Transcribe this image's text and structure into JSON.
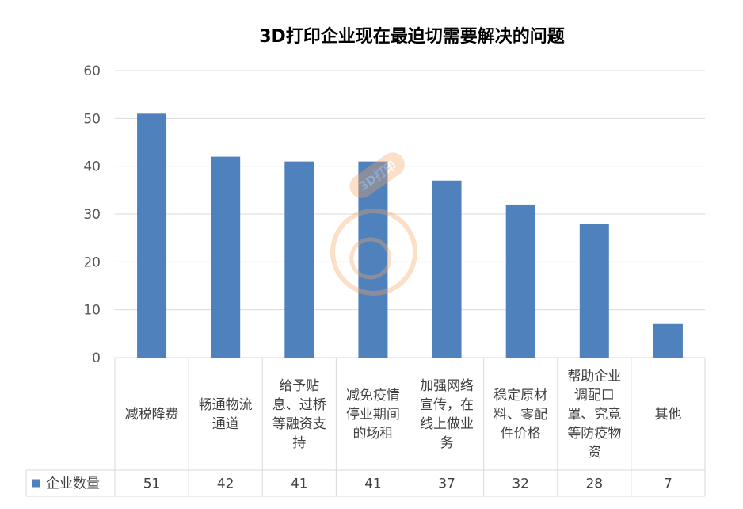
{
  "chart_data": {
    "type": "bar",
    "title": "3D打印企业现在最迫切需要解决的问题",
    "categories": [
      "减税降费",
      "畅通物流通道",
      "给予贴息、过桥等融资支持",
      "减免疫情停业期间的场租",
      "加强网络宣传，在线上做业务",
      "稳定原材料、零配件价格",
      "帮助企业调配口罩、究竟等防疫物资",
      "其他"
    ],
    "category_lines": [
      [
        "减税降费"
      ],
      [
        "畅通物流",
        "通道"
      ],
      [
        "给予贴",
        "息、过桥",
        "等融资支",
        "持"
      ],
      [
        "减免疫情",
        "停业期间",
        "的场租"
      ],
      [
        "加强网络",
        "宣传，在",
        "线上做业",
        "务"
      ],
      [
        "稳定原材",
        "料、零配",
        "件价格"
      ],
      [
        "帮助企业",
        "调配口",
        "罩、究竟",
        "等防疫物",
        "资"
      ],
      [
        "其他"
      ]
    ],
    "series": [
      {
        "name": "企业数量",
        "values": [
          51,
          42,
          41,
          41,
          37,
          32,
          28,
          7
        ]
      }
    ],
    "ylim": [
      0,
      60
    ],
    "yticks": [
      0,
      10,
      20,
      30,
      40,
      50,
      60
    ],
    "grid": true,
    "legend": "data-table",
    "colors": {
      "bar": "#4f81bd",
      "grid": "#d9d9d9"
    }
  },
  "watermark_text": "3D打印"
}
